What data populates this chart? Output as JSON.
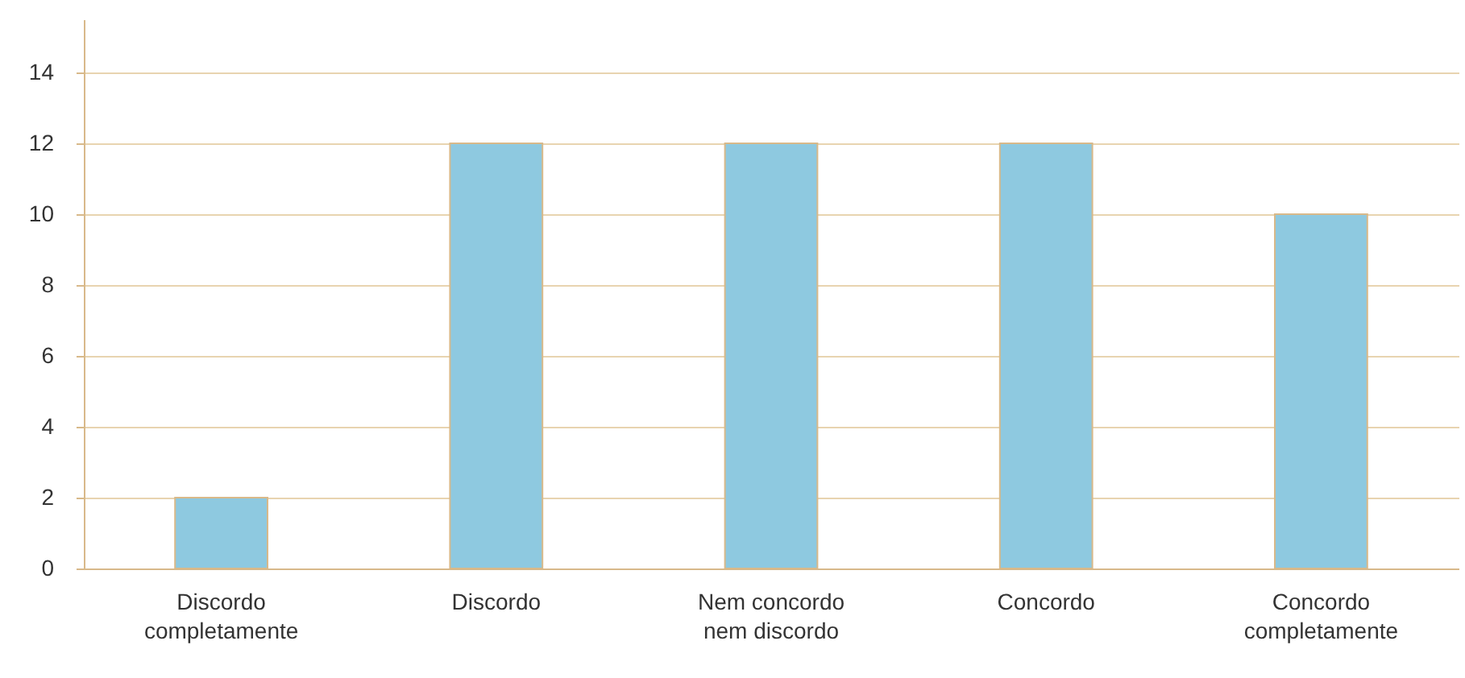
{
  "chart_data": {
    "type": "bar",
    "categories": [
      "Discordo\ncompletamente",
      "Discordo",
      "Nem concordo\nnem discordo",
      "Concordo",
      "Concordo\ncompletamente"
    ],
    "values": [
      2,
      12,
      12,
      12,
      10
    ],
    "color": "#8ec9e0",
    "ylim": [
      0,
      15.5
    ],
    "yticks": [
      0,
      2,
      4,
      6,
      8,
      10,
      12,
      14
    ],
    "grid": "y"
  }
}
